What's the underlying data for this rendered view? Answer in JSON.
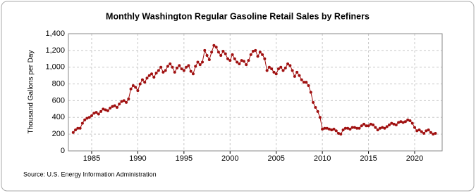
{
  "chart_data": {
    "type": "line",
    "title": "Monthly Washington Regular Gasoline Retail Sales by Refiners",
    "y_label": "Thousand Gallons per Day",
    "source": "Source: U.S. Energy Information Administration",
    "x": [
      1983,
      1983.25,
      1983.5,
      1983.75,
      1984,
      1984.25,
      1984.5,
      1984.75,
      1985,
      1985.25,
      1985.5,
      1985.75,
      1986,
      1986.25,
      1986.5,
      1986.75,
      1987,
      1987.25,
      1987.5,
      1987.75,
      1988,
      1988.25,
      1988.5,
      1988.75,
      1989,
      1989.25,
      1989.5,
      1989.75,
      1990,
      1990.25,
      1990.5,
      1990.75,
      1991,
      1991.25,
      1991.5,
      1991.75,
      1992,
      1992.25,
      1992.5,
      1992.75,
      1993,
      1993.25,
      1993.5,
      1993.75,
      1994,
      1994.25,
      1994.5,
      1994.75,
      1995,
      1995.25,
      1995.5,
      1995.75,
      1996,
      1996.25,
      1996.5,
      1996.75,
      1997,
      1997.25,
      1997.5,
      1997.75,
      1998,
      1998.25,
      1998.5,
      1998.75,
      1999,
      1999.25,
      1999.5,
      1999.75,
      2000,
      2000.25,
      2000.5,
      2000.75,
      2001,
      2001.25,
      2001.5,
      2001.75,
      2002,
      2002.25,
      2002.5,
      2002.75,
      2003,
      2003.25,
      2003.5,
      2003.75,
      2004,
      2004.25,
      2004.5,
      2004.75,
      2005,
      2005.25,
      2005.5,
      2005.75,
      2006,
      2006.25,
      2006.5,
      2006.75,
      2007,
      2007.25,
      2007.5,
      2007.75,
      2008,
      2008.25,
      2008.5,
      2008.75,
      2009,
      2009.25,
      2009.5,
      2009.75,
      2010,
      2010.25,
      2010.5,
      2010.75,
      2011,
      2011.25,
      2011.5,
      2011.75,
      2012,
      2012.25,
      2012.5,
      2012.75,
      2013,
      2013.25,
      2013.5,
      2013.75,
      2014,
      2014.25,
      2014.5,
      2014.75,
      2015,
      2015.25,
      2015.5,
      2015.75,
      2016,
      2016.25,
      2016.5,
      2016.75,
      2017,
      2017.25,
      2017.5,
      2017.75,
      2018,
      2018.25,
      2018.5,
      2018.75,
      2019,
      2019.25,
      2019.5,
      2019.75,
      2020,
      2020.25,
      2020.5,
      2020.75,
      2021,
      2021.25,
      2021.5,
      2021.75,
      2022,
      2022.25
    ],
    "series": [
      {
        "name": "Washington Regular Gasoline Retail Sales by Refiners",
        "color": "#a01010",
        "values": [
          220,
          250,
          270,
          270,
          330,
          370,
          390,
          400,
          420,
          450,
          460,
          440,
          470,
          500,
          490,
          480,
          510,
          530,
          540,
          520,
          560,
          590,
          600,
          580,
          620,
          740,
          780,
          760,
          720,
          800,
          850,
          820,
          870,
          900,
          920,
          880,
          930,
          960,
          1000,
          940,
          960,
          1010,
          1040,
          1000,
          940,
          990,
          1020,
          980,
          960,
          1000,
          1020,
          950,
          920,
          1010,
          1060,
          1030,
          1060,
          1200,
          1140,
          1090,
          1180,
          1260,
          1240,
          1180,
          1140,
          1190,
          1160,
          1100,
          1080,
          1150,
          1100,
          1060,
          1040,
          1080,
          1070,
          1030,
          1080,
          1150,
          1190,
          1200,
          1130,
          1180,
          1150,
          1100,
          960,
          1000,
          980,
          940,
          920,
          980,
          1000,
          960,
          990,
          1040,
          1020,
          960,
          890,
          940,
          900,
          850,
          820,
          820,
          780,
          700,
          580,
          520,
          470,
          400,
          260,
          270,
          270,
          260,
          250,
          260,
          240,
          210,
          200,
          250,
          270,
          270,
          260,
          280,
          280,
          270,
          270,
          300,
          320,
          300,
          300,
          320,
          310,
          280,
          250,
          270,
          280,
          270,
          290,
          310,
          330,
          320,
          310,
          340,
          350,
          340,
          350,
          370,
          360,
          330,
          280,
          240,
          250,
          230,
          210,
          240,
          250,
          220,
          200,
          210
        ]
      }
    ],
    "xlim": [
      1982.48,
      2022.98
    ],
    "xticks": [
      1985,
      1990,
      1995,
      2000,
      2005,
      2010,
      2015,
      2020
    ],
    "ylim": [
      0,
      1400
    ],
    "yticks": [
      0,
      200,
      400,
      600,
      800,
      {
        "value": 1000,
        "label": "1,000"
      },
      {
        "value": 1200,
        "label": "1,200"
      },
      {
        "value": 1400,
        "label": "1,400"
      }
    ],
    "grid": true
  }
}
